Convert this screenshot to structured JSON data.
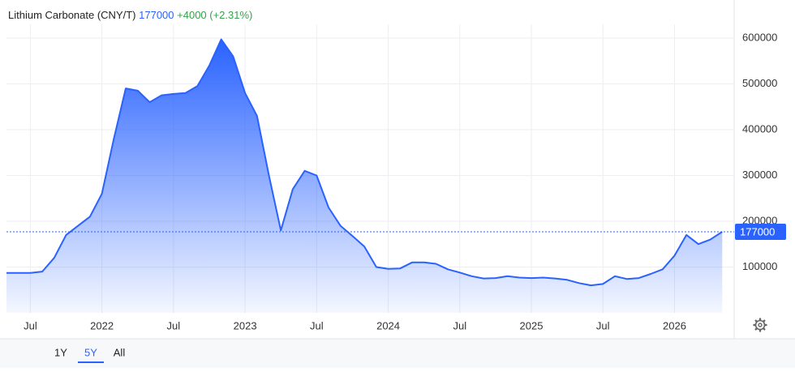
{
  "chart_data": {
    "type": "area",
    "title": "Lithium Carbonate (CNY/T)",
    "change": "+4000 (+2.31%)",
    "color": "#2962ff",
    "x": [
      "2021-05",
      "2021-06",
      "2021-07",
      "2021-08",
      "2021-09",
      "2021-10",
      "2021-11",
      "2021-12",
      "2022-01",
      "2022-02",
      "2022-03",
      "2022-04",
      "2022-05",
      "2022-06",
      "2022-07",
      "2022-08",
      "2022-09",
      "2022-10",
      "2022-11",
      "2022-12",
      "2023-01",
      "2023-02",
      "2023-03",
      "2023-04",
      "2023-05",
      "2023-06",
      "2023-07",
      "2023-08",
      "2023-09",
      "2023-10",
      "2023-11",
      "2023-12",
      "2024-01",
      "2024-02",
      "2024-03",
      "2024-04",
      "2024-05",
      "2024-06",
      "2024-07",
      "2024-08",
      "2024-09",
      "2024-10",
      "2024-11",
      "2024-12",
      "2025-01",
      "2025-02",
      "2025-03",
      "2025-04",
      "2025-05",
      "2025-06",
      "2025-07",
      "2025-08",
      "2025-09",
      "2025-10",
      "2025-11",
      "2025-12",
      "2026-01",
      "2026-02",
      "2026-03",
      "2026-04",
      "2026-05"
    ],
    "values": [
      87000,
      87000,
      87000,
      90000,
      120000,
      170000,
      190000,
      210000,
      260000,
      380000,
      490000,
      485000,
      460000,
      475000,
      478000,
      480000,
      495000,
      540000,
      597000,
      560000,
      480000,
      430000,
      300000,
      180000,
      270000,
      310000,
      300000,
      230000,
      190000,
      168000,
      145000,
      100000,
      96000,
      97000,
      110000,
      110000,
      107000,
      95000,
      88000,
      80000,
      75000,
      76000,
      80000,
      77000,
      76000,
      77000,
      75000,
      72000,
      65000,
      60000,
      63000,
      80000,
      74000,
      76000,
      85000,
      95000,
      125000,
      170000,
      150000,
      160000,
      177000
    ],
    "xlim": [
      "2021-05",
      "2026-06"
    ],
    "xticks": [
      {
        "value": "2021-07",
        "label": "Jul"
      },
      {
        "value": "2022-01",
        "label": "2022"
      },
      {
        "value": "2022-07",
        "label": "Jul"
      },
      {
        "value": "2023-01",
        "label": "2023"
      },
      {
        "value": "2023-07",
        "label": "Jul"
      },
      {
        "value": "2024-01",
        "label": "2024"
      },
      {
        "value": "2024-07",
        "label": "Jul"
      },
      {
        "value": "2025-01",
        "label": "2025"
      },
      {
        "value": "2025-07",
        "label": "Jul"
      },
      {
        "value": "2026-01",
        "label": "2026"
      }
    ],
    "ylim": [
      0,
      630000
    ],
    "yticks": [
      100000,
      200000,
      300000,
      400000,
      500000,
      600000
    ],
    "grid": true,
    "range_buttons": [
      "1Y",
      "5Y",
      "All"
    ],
    "selected_range": "5Y"
  }
}
